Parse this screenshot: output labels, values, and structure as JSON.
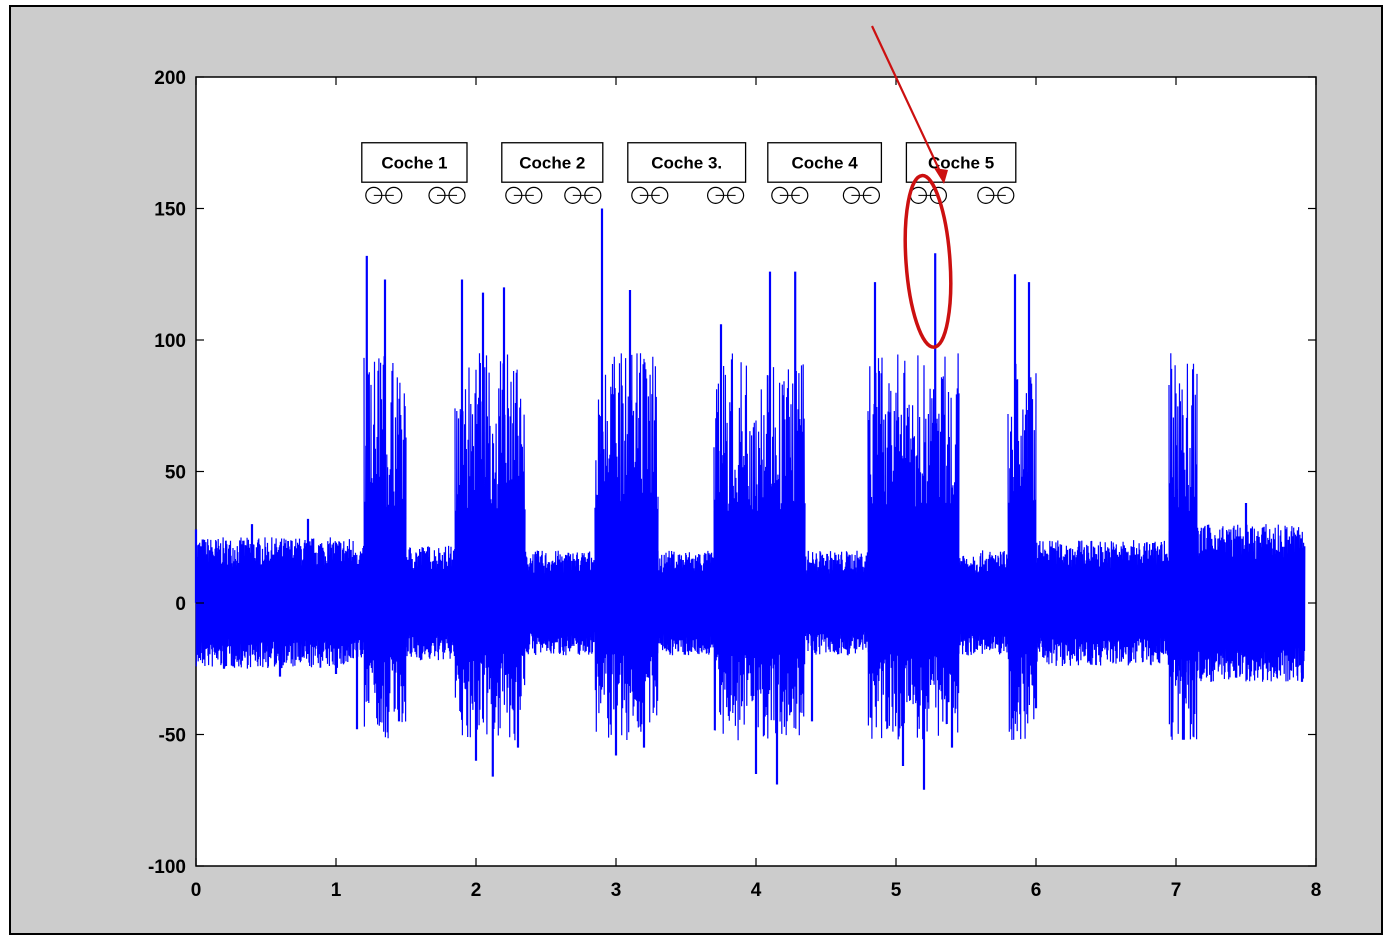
{
  "chart_data": {
    "type": "line",
    "title": "",
    "xlabel": "",
    "ylabel": "",
    "xlim": [
      0,
      8
    ],
    "ylim": [
      -100,
      200
    ],
    "grid": false,
    "x_ticks": [
      "0",
      "1",
      "2",
      "3",
      "4",
      "5",
      "6",
      "7",
      "8"
    ],
    "y_ticks": [
      "200",
      "150",
      "100",
      "50",
      "0",
      "-50",
      "-100"
    ],
    "series": [
      {
        "color": "#0000ff",
        "description_points": [
          {
            "x": 0.0,
            "y": 28
          },
          {
            "x": 0.2,
            "y": -25
          },
          {
            "x": 0.4,
            "y": 30
          },
          {
            "x": 0.6,
            "y": -28
          },
          {
            "x": 0.8,
            "y": 32
          },
          {
            "x": 1.0,
            "y": -27
          },
          {
            "x": 1.15,
            "y": -48
          },
          {
            "x": 1.22,
            "y": 132
          },
          {
            "x": 1.3,
            "y": -38
          },
          {
            "x": 1.35,
            "y": 123
          },
          {
            "x": 1.45,
            "y": -45
          },
          {
            "x": 1.9,
            "y": 123
          },
          {
            "x": 2.0,
            "y": -60
          },
          {
            "x": 2.05,
            "y": 118
          },
          {
            "x": 2.12,
            "y": -66
          },
          {
            "x": 2.2,
            "y": 120
          },
          {
            "x": 2.3,
            "y": -55
          },
          {
            "x": 2.9,
            "y": 150
          },
          {
            "x": 3.0,
            "y": -58
          },
          {
            "x": 3.1,
            "y": 119
          },
          {
            "x": 3.2,
            "y": -55
          },
          {
            "x": 3.75,
            "y": 106
          },
          {
            "x": 4.0,
            "y": -65
          },
          {
            "x": 4.1,
            "y": 126
          },
          {
            "x": 4.15,
            "y": -69
          },
          {
            "x": 4.28,
            "y": 126
          },
          {
            "x": 4.4,
            "y": -45
          },
          {
            "x": 4.85,
            "y": 122
          },
          {
            "x": 5.05,
            "y": -62
          },
          {
            "x": 5.2,
            "y": -71
          },
          {
            "x": 5.28,
            "y": 133
          },
          {
            "x": 5.4,
            "y": -55
          },
          {
            "x": 5.85,
            "y": 125
          },
          {
            "x": 5.95,
            "y": 122
          },
          {
            "x": 6.0,
            "y": -40
          },
          {
            "x": 7.0,
            "y": 60
          },
          {
            "x": 7.05,
            "y": -52
          },
          {
            "x": 7.5,
            "y": 38
          },
          {
            "x": 7.9,
            "y": -30
          }
        ]
      }
    ],
    "annotations": {
      "cars": [
        {
          "label": "Coche 1",
          "x_start": 1.17,
          "x_end": 1.95
        },
        {
          "label": "Coche  2",
          "x_start": 2.17,
          "x_end": 2.92
        },
        {
          "label": "Coche 3.",
          "x_start": 3.07,
          "x_end": 3.94
        },
        {
          "label": "Coche 4",
          "x_start": 4.07,
          "x_end": 4.91
        },
        {
          "label": "Coche 5",
          "x_start": 5.06,
          "x_end": 5.87
        }
      ],
      "highlight": {
        "x": 5.3,
        "y": 128,
        "color": "#cc1010"
      }
    }
  }
}
